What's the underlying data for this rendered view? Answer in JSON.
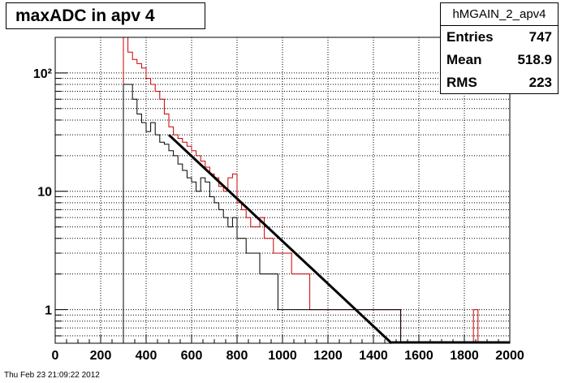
{
  "title": "maxADC in apv 4",
  "stats": {
    "name": "hMGAIN_2_apv4",
    "rows": [
      {
        "label": "Entries",
        "value": "747"
      },
      {
        "label": "Mean",
        "value": "518.9"
      },
      {
        "label": "RMS",
        "value": "223"
      }
    ]
  },
  "footer": "Thu Feb 23 21:09:22 2012",
  "chart_data": {
    "type": "line",
    "xlim": [
      0,
      2000
    ],
    "ylim": [
      0.52,
      200
    ],
    "log_y": true,
    "grid": true,
    "x_ticks": [
      "0",
      "200",
      "400",
      "600",
      "800",
      "1000",
      "1200",
      "1400",
      "1600",
      "1800",
      "2000"
    ],
    "y_ticks": [
      {
        "value": 1,
        "label": "1"
      },
      {
        "value": 10,
        "label": "10"
      },
      {
        "value": 100,
        "label": "10²"
      }
    ],
    "bin_width": 20,
    "series": [
      {
        "color": "#cc0000",
        "bins": [
          [
            300,
            200
          ],
          [
            320,
            150
          ],
          [
            340,
            130
          ],
          [
            360,
            120
          ],
          [
            380,
            110
          ],
          [
            400,
            90
          ],
          [
            420,
            80
          ],
          [
            440,
            70
          ],
          [
            460,
            60
          ],
          [
            480,
            45
          ],
          [
            500,
            35
          ],
          [
            520,
            30
          ],
          [
            540,
            28
          ],
          [
            560,
            26
          ],
          [
            580,
            24
          ],
          [
            600,
            22
          ],
          [
            620,
            20
          ],
          [
            640,
            18
          ],
          [
            660,
            16
          ],
          [
            680,
            14
          ],
          [
            700,
            13
          ],
          [
            720,
            11
          ],
          [
            740,
            10
          ],
          [
            760,
            13
          ],
          [
            780,
            14
          ],
          [
            800,
            8
          ],
          [
            820,
            7
          ],
          [
            840,
            6
          ],
          [
            860,
            5
          ],
          [
            880,
            5
          ],
          [
            900,
            6
          ],
          [
            920,
            4
          ],
          [
            940,
            4
          ],
          [
            960,
            3
          ],
          [
            980,
            3
          ],
          [
            1000,
            3
          ],
          [
            1020,
            3
          ],
          [
            1040,
            2
          ],
          [
            1060,
            2
          ],
          [
            1080,
            2
          ],
          [
            1100,
            2
          ],
          [
            1120,
            1
          ],
          [
            1140,
            1
          ],
          [
            1160,
            1
          ],
          [
            1180,
            1
          ],
          [
            1200,
            1
          ],
          [
            1220,
            1
          ],
          [
            1240,
            1
          ],
          [
            1260,
            1
          ],
          [
            1280,
            1
          ],
          [
            1300,
            1
          ],
          [
            1320,
            1
          ],
          [
            1340,
            1
          ],
          [
            1360,
            1
          ],
          [
            1380,
            1
          ],
          [
            1400,
            1
          ],
          [
            1420,
            1
          ],
          [
            1440,
            1
          ],
          [
            1460,
            1
          ],
          [
            1480,
            1
          ],
          [
            1500,
            1
          ],
          [
            1840,
            1
          ]
        ]
      },
      {
        "color": "#000000",
        "bins": [
          [
            300,
            80
          ],
          [
            320,
            80
          ],
          [
            340,
            60
          ],
          [
            360,
            45
          ],
          [
            380,
            38
          ],
          [
            400,
            32
          ],
          [
            420,
            38
          ],
          [
            440,
            30
          ],
          [
            460,
            26
          ],
          [
            480,
            25
          ],
          [
            500,
            22
          ],
          [
            520,
            20
          ],
          [
            540,
            17
          ],
          [
            560,
            15
          ],
          [
            580,
            13
          ],
          [
            600,
            12
          ],
          [
            620,
            10
          ],
          [
            640,
            13
          ],
          [
            660,
            12
          ],
          [
            680,
            9
          ],
          [
            700,
            8
          ],
          [
            720,
            7
          ],
          [
            740,
            6
          ],
          [
            760,
            5
          ],
          [
            780,
            6
          ],
          [
            800,
            4
          ],
          [
            820,
            4
          ],
          [
            840,
            3
          ],
          [
            860,
            3
          ],
          [
            880,
            3
          ],
          [
            900,
            2
          ],
          [
            920,
            2
          ],
          [
            940,
            2
          ],
          [
            960,
            2
          ],
          [
            980,
            1
          ],
          [
            1000,
            1
          ],
          [
            1020,
            1
          ],
          [
            1040,
            1
          ],
          [
            1060,
            1
          ],
          [
            1080,
            1
          ],
          [
            1100,
            1
          ],
          [
            1120,
            1
          ],
          [
            1140,
            1
          ],
          [
            1160,
            1
          ],
          [
            1180,
            1
          ],
          [
            1200,
            1
          ],
          [
            1220,
            1
          ],
          [
            1240,
            1
          ],
          [
            1260,
            1
          ],
          [
            1280,
            1
          ],
          [
            1300,
            1
          ],
          [
            1320,
            1
          ],
          [
            1340,
            1
          ],
          [
            1360,
            1
          ],
          [
            1380,
            1
          ],
          [
            1400,
            1
          ],
          [
            1420,
            1
          ],
          [
            1440,
            1
          ],
          [
            1460,
            1
          ],
          [
            1480,
            1
          ],
          [
            1500,
            1
          ]
        ]
      },
      {
        "kind": "fit",
        "color": "#000000",
        "points": [
          [
            500,
            30
          ],
          [
            1480,
            0.52
          ]
        ]
      }
    ]
  }
}
